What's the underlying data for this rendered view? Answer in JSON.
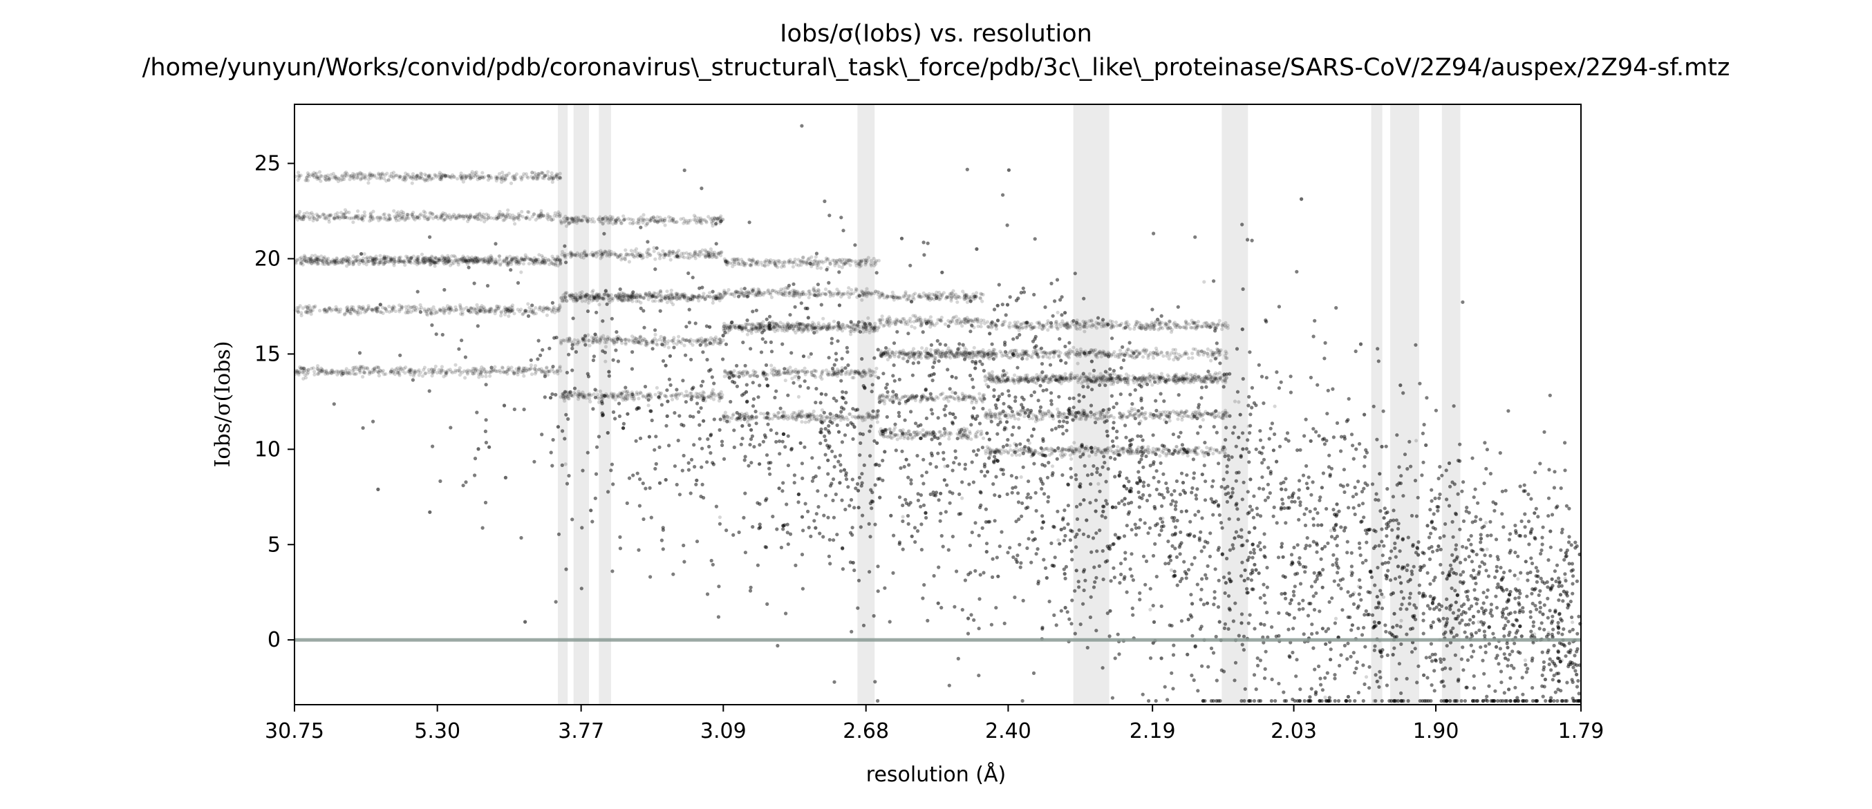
{
  "chart_data": {
    "type": "scatter",
    "title": "Iobs/σ(Iobs) vs. resolution",
    "subtitle": "/home/yunyun/Works/convid/pdb/coronavirus\\_structural\\_task\\_force/pdb/3c\\_like\\_proteinase/SARS-CoV/2Z94/auspex/2Z94-sf.mtz",
    "xlabel": "resolution (Å)",
    "ylabel": "Iobs/σ(Iobs)",
    "x_scale": "inverse-square resolution (1/d²)",
    "x_ticks": [
      "30.75",
      "5.30",
      "3.77",
      "3.09",
      "2.68",
      "2.40",
      "2.19",
      "2.03",
      "1.90",
      "1.79"
    ],
    "x_tick_values": [
      30.75,
      5.3,
      3.77,
      3.09,
      2.68,
      2.4,
      2.19,
      2.03,
      1.9,
      1.79
    ],
    "xlim": [
      30.75,
      1.79
    ],
    "y_ticks": [
      "0",
      "5",
      "10",
      "15",
      "20",
      "25"
    ],
    "y_tick_values": [
      0,
      5,
      10,
      15,
      20,
      25
    ],
    "ylim": [
      -3.4,
      28.1
    ],
    "reference_line": {
      "y": 0,
      "color": "#8a9a94"
    },
    "ice_ring_bands": [
      {
        "d_from": 3.93,
        "d_to": 3.86
      },
      {
        "d_from": 3.82,
        "d_to": 3.72
      },
      {
        "d_from": 3.66,
        "d_to": 3.59
      },
      {
        "d_from": 2.7,
        "d_to": 2.66
      },
      {
        "d_from": 2.298,
        "d_to": 2.247
      },
      {
        "d_from": 2.107,
        "d_to": 2.078
      },
      {
        "d_from": 1.956,
        "d_to": 1.946
      },
      {
        "d_from": 1.939,
        "d_to": 1.914
      },
      {
        "d_from": 1.895,
        "d_to": 1.88
      }
    ],
    "band_color": "#ebebeb",
    "point_color": "#000000",
    "grid": false,
    "legend": "none",
    "shell_levels": [
      {
        "d_from": 30.75,
        "d_to": 3.91,
        "levels": [
          24.3,
          22.2,
          19.9,
          17.3,
          14.1
        ]
      },
      {
        "d_from": 3.91,
        "d_to": 3.09,
        "levels": [
          22.0,
          20.2,
          18.0,
          15.7,
          12.8
        ]
      },
      {
        "d_from": 3.09,
        "d_to": 2.65,
        "levels": [
          19.8,
          18.2,
          16.4,
          14.0,
          11.7
        ]
      },
      {
        "d_from": 2.65,
        "d_to": 2.44,
        "levels": [
          18.0,
          16.7,
          15.0,
          12.7,
          10.8
        ]
      },
      {
        "d_from": 2.44,
        "d_to": 2.1,
        "levels": [
          16.5,
          15.0,
          13.7,
          11.8,
          9.9
        ]
      }
    ]
  }
}
